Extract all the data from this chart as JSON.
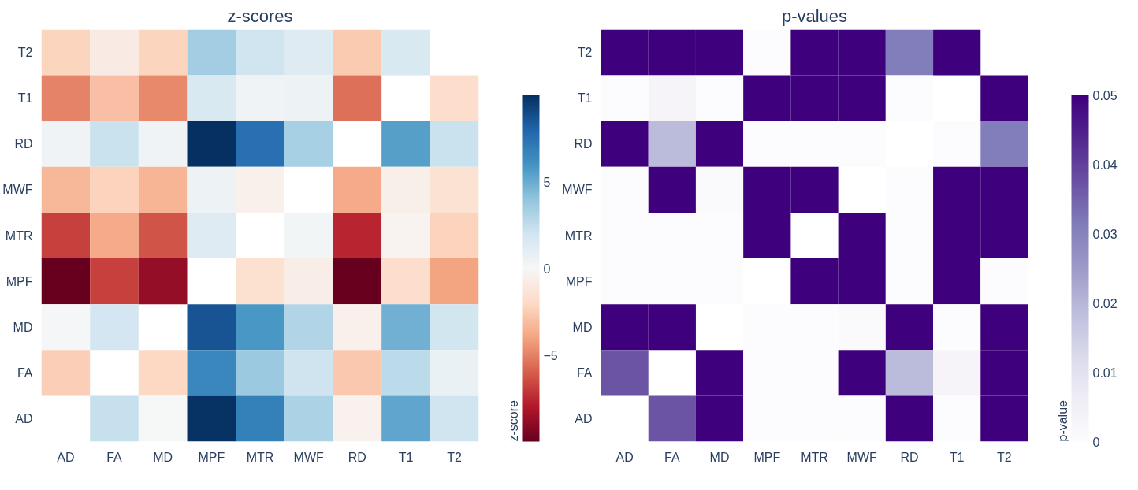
{
  "chart_data": [
    {
      "type": "heatmap",
      "title": "z-scores",
      "clabel": "z-score",
      "categories": [
        "AD",
        "FA",
        "MD",
        "MPF",
        "MTR",
        "MWF",
        "RD",
        "T1",
        "T2"
      ],
      "y_categories": [
        "T2",
        "T1",
        "RD",
        "MWF",
        "MTR",
        "MPF",
        "MD",
        "FA",
        "AD"
      ],
      "cells": [
        [
          -2.2,
          -0.8,
          -2.2,
          3.5,
          2.0,
          1.3,
          -2.6,
          1.6,
          null
        ],
        [
          -5.0,
          -3.0,
          -4.8,
          1.6,
          0.4,
          0.5,
          -5.5,
          null,
          -1.8
        ],
        [
          0.4,
          2.2,
          0.4,
          10.0,
          7.5,
          3.3,
          null,
          5.5,
          2.2
        ],
        [
          -3.3,
          -2.3,
          -3.4,
          0.5,
          -0.5,
          null,
          -3.8,
          -0.6,
          -1.5
        ],
        [
          -6.8,
          -3.8,
          -6.3,
          1.3,
          null,
          0.3,
          -7.6,
          -0.3,
          -2.3
        ],
        [
          -10.0,
          -6.8,
          -8.8,
          null,
          -1.6,
          -0.7,
          -10.0,
          -1.8,
          -4.0
        ],
        [
          0.1,
          1.8,
          null,
          8.6,
          5.8,
          3.0,
          -0.5,
          4.8,
          1.9
        ],
        [
          -2.5,
          null,
          -2.1,
          6.5,
          3.7,
          2.1,
          -2.7,
          2.7,
          0.7
        ],
        [
          null,
          2.3,
          0.0,
          9.9,
          6.8,
          3.2,
          -0.4,
          5.3,
          2.0
        ]
      ],
      "clim": [
        -10,
        10
      ],
      "cticks": [
        {
          "value": -5,
          "label": "−5"
        },
        0,
        5
      ]
    },
    {
      "type": "heatmap",
      "title": "p-values",
      "clabel": "p-value",
      "categories": [
        "AD",
        "FA",
        "MD",
        "MPF",
        "MTR",
        "MWF",
        "RD",
        "T1",
        "T2"
      ],
      "y_categories": [
        "T2",
        "T1",
        "RD",
        "MWF",
        "MTR",
        "MPF",
        "MD",
        "FA",
        "AD"
      ],
      "cells": [
        [
          0.05,
          0.05,
          0.05,
          0,
          0.05,
          0.05,
          0.031,
          0.05,
          null
        ],
        [
          0,
          0.003,
          0,
          0.05,
          0.05,
          0.05,
          0,
          null,
          0.05
        ],
        [
          0.05,
          0.019,
          0.05,
          0,
          0,
          0,
          null,
          0,
          0.031
        ],
        [
          0,
          0.05,
          0.001,
          0.05,
          0.05,
          null,
          0,
          0.05,
          0.05
        ],
        [
          0,
          0,
          0,
          0.05,
          null,
          0.05,
          0,
          0.05,
          0.05
        ],
        [
          0,
          0,
          0,
          null,
          0.05,
          0.05,
          0,
          0.05,
          0
        ],
        [
          0.05,
          0.05,
          null,
          0,
          0,
          0.001,
          0.05,
          0,
          0.05
        ],
        [
          0.037,
          null,
          0.05,
          0,
          0,
          0.05,
          0.019,
          0.003,
          0.05
        ],
        [
          null,
          0.037,
          0.05,
          0,
          0,
          0,
          0.05,
          0,
          0.05
        ]
      ],
      "clim": [
        0,
        0.05
      ],
      "cticks": [
        0,
        0.01,
        0.02,
        0.03,
        0.04,
        0.05
      ]
    }
  ]
}
